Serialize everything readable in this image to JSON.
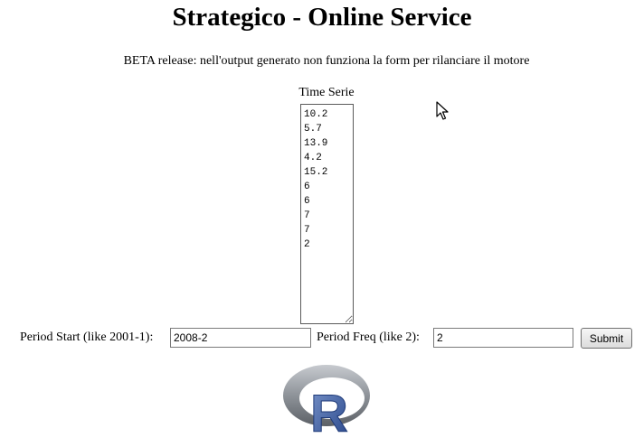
{
  "page": {
    "title": "Strategico - Online Service",
    "subtitle": "BETA release: nell'output generato non funziona la form per rilanciare il motore"
  },
  "form": {
    "time_series_label": "Time Serie",
    "time_series_value": "10.2\n5.7\n13.9\n4.2\n15.2\n6\n6\n7\n7\n2",
    "period_start_label": "Period Start (like 2001-1):",
    "period_start_value": "2008-2",
    "period_freq_label": "Period Freq (like 2):",
    "period_freq_value": "2",
    "submit_label": "Submit"
  },
  "logo": {
    "text": "R",
    "icon": "r-logo-icon"
  },
  "colors": {
    "logo_ring": "#8e9399",
    "logo_letter": "#3a5a9e"
  }
}
